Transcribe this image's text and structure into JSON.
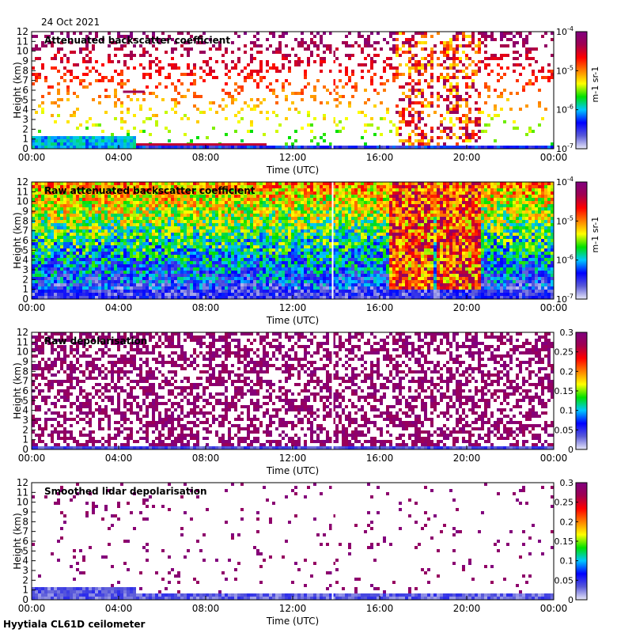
{
  "header": {
    "date": "24 Oct 2021"
  },
  "footer": {
    "site": "Hyytiala CL61D ceilometer"
  },
  "colors": {
    "background": "#ffffff",
    "frame": "#000000",
    "data_gap": "#ffffff",
    "colormap_stops": [
      "#e8e8f8",
      "#5a5ad8",
      "#0000ff",
      "#00c8ff",
      "#00e000",
      "#ffff00",
      "#ff8000",
      "#ff0000",
      "#a00050",
      "#800080"
    ]
  },
  "chart_data": [
    {
      "type": "heatmap",
      "title": "Attenuated backscatter coefficient",
      "xlabel": "Time (UTC)",
      "ylabel": "Height (km)",
      "xticks": [
        "00:00",
        "04:00",
        "08:00",
        "12:00",
        "16:00",
        "20:00",
        "00:00"
      ],
      "yticks": [
        "0",
        "1",
        "2",
        "3",
        "4",
        "5",
        "6",
        "7",
        "8",
        "9",
        "10",
        "11",
        "12"
      ],
      "xlim_hours": [
        0,
        24
      ],
      "ylim_km": [
        0,
        12
      ],
      "colorbar": {
        "scale": "log",
        "min_exp": -7,
        "max_exp": -4,
        "ticks": [
          "10-7",
          "10-6",
          "10-5",
          "10-4"
        ],
        "unit": "m-1 sr-1"
      },
      "features": {
        "data_gap_hours": [
          13.8,
          13.85
        ],
        "boundary_layer_top_km": 0.4,
        "cloud_layer": {
          "start_h": 4.8,
          "end_h": 10.8,
          "height_km": 0.4
        },
        "aloft_layer": {
          "start_h": 4.2,
          "end_h": 5.2,
          "height_km": 5.8
        },
        "high_signal_columns_hours": [
          [
            16.6,
            18.4
          ],
          [
            18.6,
            20.6
          ]
        ]
      }
    },
    {
      "type": "heatmap",
      "title": "Raw attenuated backscatter coefficient",
      "xlabel": "Time (UTC)",
      "ylabel": "Height (km)",
      "xticks": [
        "00:00",
        "04:00",
        "08:00",
        "12:00",
        "16:00",
        "20:00",
        "00:00"
      ],
      "yticks": [
        "0",
        "1",
        "2",
        "3",
        "4",
        "5",
        "6",
        "7",
        "8",
        "9",
        "10",
        "11",
        "12"
      ],
      "xlim_hours": [
        0,
        24
      ],
      "ylim_km": [
        0,
        12
      ],
      "colorbar": {
        "scale": "log",
        "min_exp": -7,
        "max_exp": -4,
        "ticks": [
          "10-7",
          "10-6",
          "10-5",
          "10-4"
        ],
        "unit": "m-1 sr-1"
      },
      "features": {
        "data_gap_hours": [
          13.8,
          13.85
        ],
        "high_signal_columns_hours": [
          [
            16.4,
            18.4
          ],
          [
            18.6,
            20.6
          ]
        ]
      }
    },
    {
      "type": "heatmap",
      "title": "Raw depolarisation",
      "xlabel": "Time (UTC)",
      "ylabel": "Height (km)",
      "xticks": [
        "00:00",
        "04:00",
        "08:00",
        "12:00",
        "16:00",
        "20:00",
        "00:00"
      ],
      "yticks": [
        "0",
        "1",
        "2",
        "3",
        "4",
        "5",
        "6",
        "7",
        "8",
        "9",
        "10",
        "11",
        "12"
      ],
      "xlim_hours": [
        0,
        24
      ],
      "ylim_km": [
        0,
        12
      ],
      "colorbar": {
        "scale": "linear",
        "min": 0,
        "max": 0.3,
        "ticks": [
          "0",
          "0.05",
          "0.1",
          "0.15",
          "0.2",
          "0.25",
          "0.3"
        ]
      },
      "features": {
        "data_gap_hours": [
          13.8,
          13.85
        ]
      }
    },
    {
      "type": "heatmap",
      "title": "Smoothed lidar depolarisation",
      "xlabel": "Time (UTC)",
      "ylabel": "Height (km)",
      "xticks": [
        "00:00",
        "04:00",
        "08:00",
        "12:00",
        "16:00",
        "20:00",
        "00:00"
      ],
      "yticks": [
        "0",
        "1",
        "2",
        "3",
        "4",
        "5",
        "6",
        "7",
        "8",
        "9",
        "10",
        "11",
        "12"
      ],
      "xlim_hours": [
        0,
        24
      ],
      "ylim_km": [
        0,
        12
      ],
      "colorbar": {
        "scale": "linear",
        "min": 0,
        "max": 0.3,
        "ticks": [
          "0",
          "0.05",
          "0.1",
          "0.15",
          "0.2",
          "0.25",
          "0.3"
        ]
      },
      "features": {
        "data_gap_hours": [
          13.8,
          13.85
        ]
      }
    }
  ]
}
